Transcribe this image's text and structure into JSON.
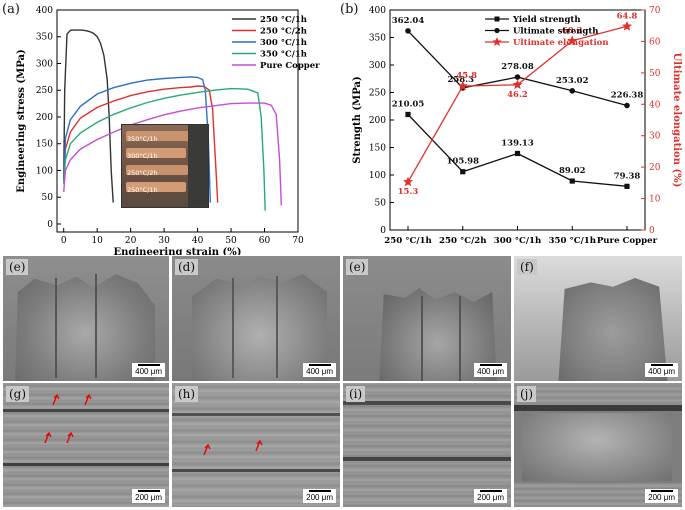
{
  "figure_labels": {
    "a": "(a)",
    "b": "(b)",
    "sem": [
      "(e)",
      "(d)",
      "(e)",
      "(f)",
      "(g)",
      "(h)",
      "(i)",
      "(j)"
    ]
  },
  "scale_labels": {
    "top": "400 μm",
    "bottom": "200 μm"
  },
  "inset_labels": [
    "350°C/1h",
    "300°C/1h",
    "250°C/2h",
    "250°C/1h"
  ],
  "chart_data": [
    {
      "type": "line",
      "xlabel": "Engineering strain (%)",
      "ylabel": "Engineering stress (MPa)",
      "xlim": [
        -2,
        70
      ],
      "ylim": [
        -15,
        400
      ],
      "xticks": [
        0,
        10,
        20,
        30,
        40,
        50,
        60,
        70
      ],
      "yticks": [
        0,
        50,
        100,
        150,
        200,
        250,
        300,
        350,
        400
      ],
      "legend_position": "top-right",
      "series": [
        {
          "name": "250 °C/1h",
          "color": "#333333",
          "x": [
            0,
            0.3,
            1,
            2,
            3,
            4,
            5,
            6,
            7,
            8,
            9,
            10,
            11,
            12,
            13,
            13.6,
            14.2,
            14.8
          ],
          "y": [
            80,
            250,
            355,
            362,
            362.4,
            362.5,
            362.4,
            362,
            361,
            359,
            356,
            350,
            338,
            315,
            270,
            200,
            100,
            40
          ]
        },
        {
          "name": "250 °C/2h",
          "color": "#e0302c",
          "x": [
            0,
            0.5,
            2,
            5,
            10,
            15,
            20,
            25,
            30,
            35,
            38,
            40,
            42,
            43.5,
            44.5,
            45.5,
            46
          ],
          "y": [
            80,
            140,
            172,
            198,
            218,
            230,
            240,
            247,
            252,
            255,
            256,
            258,
            257,
            250,
            215,
            100,
            40
          ]
        },
        {
          "name": "300 °C/1h",
          "color": "#2f6fc5",
          "x": [
            0,
            0.5,
            2,
            5,
            10,
            15,
            20,
            25,
            30,
            35,
            38,
            40,
            41.5,
            42.3,
            43.2,
            43.8
          ],
          "y": [
            80,
            160,
            195,
            220,
            243,
            255,
            263,
            269,
            272,
            274,
            275,
            274,
            270,
            250,
            160,
            40
          ]
        },
        {
          "name": "350 °C/1h",
          "color": "#2aa876",
          "x": [
            0,
            0.5,
            2,
            5,
            10,
            15,
            20,
            25,
            30,
            35,
            40,
            45,
            50,
            55,
            58,
            59,
            59.8,
            60.2
          ],
          "y": [
            75,
            120,
            150,
            170,
            190,
            205,
            217,
            227,
            235,
            241,
            246,
            250,
            253,
            252,
            245,
            200,
            100,
            25
          ]
        },
        {
          "name": "Pure Copper",
          "color": "#c44fd6",
          "x": [
            0,
            0.5,
            2,
            5,
            10,
            15,
            20,
            25,
            30,
            35,
            40,
            45,
            50,
            55,
            60,
            62,
            63.5,
            64.5,
            65
          ],
          "y": [
            60,
            100,
            120,
            140,
            158,
            172,
            185,
            195,
            204,
            211,
            217,
            221,
            225,
            226,
            226,
            222,
            205,
            120,
            35
          ]
        }
      ]
    },
    {
      "type": "line",
      "categories": [
        "250 °C/1h",
        "250 °C/2h",
        "300 °C/1h",
        "350 °C/1h",
        "Pure Copper"
      ],
      "ylabel": "Strength (MPa)",
      "y2label": "Ultimate elongation (%)",
      "ylim": [
        0,
        400
      ],
      "y2lim": [
        0,
        70
      ],
      "yticks": [
        0,
        50,
        100,
        150,
        200,
        250,
        300,
        350,
        400
      ],
      "y2ticks": [
        0,
        10,
        20,
        30,
        40,
        50,
        60,
        70
      ],
      "legend_position": "top-right",
      "series": [
        {
          "name": "Yield strength",
          "axis": "left",
          "color": "#111111",
          "marker": "square",
          "values": [
            210.05,
            105.98,
            139.13,
            89.02,
            79.38
          ],
          "labels": [
            "210.05",
            "105.98",
            "139.13",
            "89.02",
            "79.38"
          ]
        },
        {
          "name": "Ultimate strength",
          "axis": "left",
          "color": "#111111",
          "marker": "circle",
          "values": [
            362.04,
            258.3,
            278.08,
            253.02,
            226.38
          ],
          "labels": [
            "362.04",
            "258.3",
            "278.08",
            "253.02",
            "226.38"
          ]
        },
        {
          "name": "Ultimate elongation",
          "axis": "right",
          "color": "#e0302c",
          "marker": "star",
          "values": [
            15.3,
            45.8,
            46.2,
            60.2,
            64.8
          ],
          "labels": [
            "15.3",
            "45.8",
            "46.2",
            "60.2",
            "64.8"
          ]
        }
      ]
    }
  ]
}
